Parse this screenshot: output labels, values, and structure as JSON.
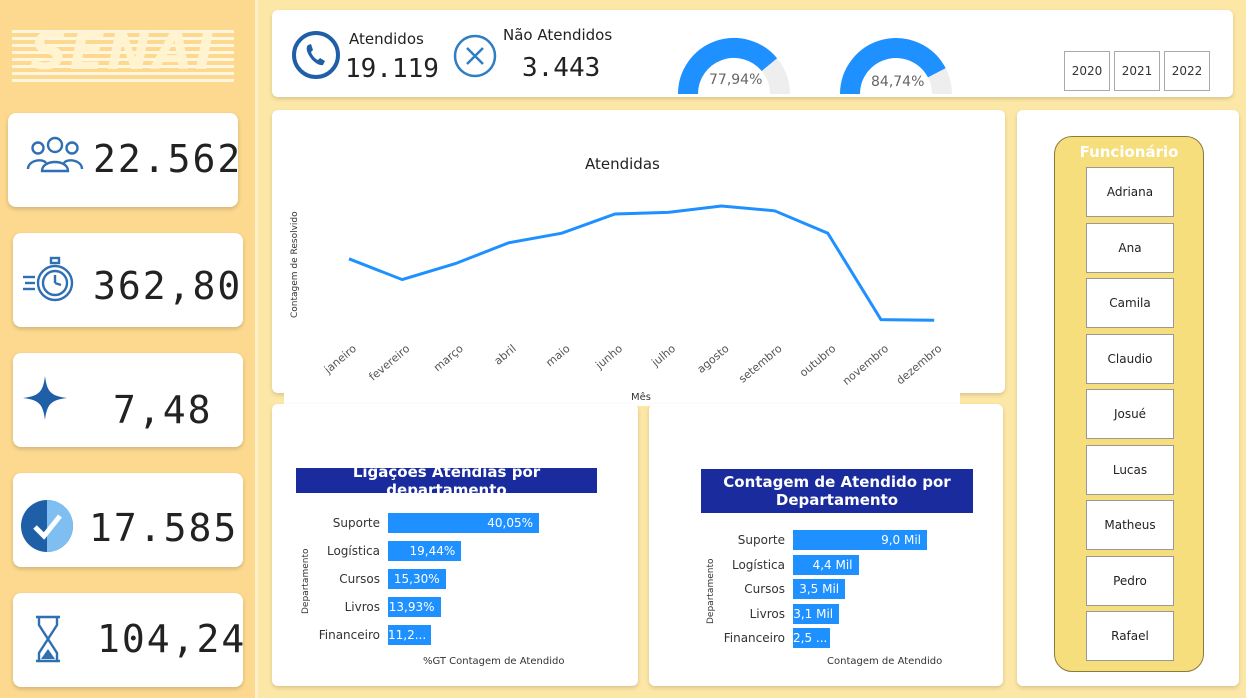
{
  "logo": {
    "text": "SENAI"
  },
  "kpis": [
    {
      "icon": "users-icon",
      "value": "22.562"
    },
    {
      "icon": "stopwatch-icon",
      "value": "362,80"
    },
    {
      "icon": "star-icon",
      "value": "7,48"
    },
    {
      "icon": "check-circle-icon",
      "value": "17.585"
    },
    {
      "icon": "hourglass-icon",
      "value": "104,24"
    }
  ],
  "header": {
    "attended": {
      "label": "Atendidos",
      "value": "19.119",
      "icon": "phone-icon"
    },
    "not_attended": {
      "label": "Não Atendidos",
      "value": "3.443",
      "icon": "close-circle-icon"
    },
    "gauges": [
      {
        "label": "77,94%",
        "value": 0.7794
      },
      {
        "label": "84,74%",
        "value": 0.8474
      }
    ],
    "years": [
      "2020",
      "2021",
      "2022"
    ]
  },
  "line_chart": {
    "title": "Atendidas",
    "ylabel": "Contagem de Resolvido",
    "xlabel": "Mês"
  },
  "dept_chart_1": {
    "title": "Ligações Atendias por departamento",
    "ylabel": "Departamento",
    "xlabel": "%GT Contagem de Atendido"
  },
  "dept_chart_2": {
    "title": "Contagem de Atendido por Departamento",
    "ylabel": "Departamento",
    "xlabel": "Contagem de Atendido"
  },
  "slicer": {
    "title": "Funcionário",
    "names": [
      "Adriana",
      "Ana",
      "Camila",
      "Claudio",
      "Josué",
      "Lucas",
      "Matheus",
      "Pedro",
      "Rafael"
    ]
  },
  "colors": {
    "accent": "#1e90ff",
    "navy": "#1a2b9e",
    "background": "#fde7a6",
    "sidebar": "#fcd98f"
  },
  "chart_data": [
    {
      "type": "line",
      "title": "Atendidas",
      "xlabel": "Mês",
      "ylabel": "Contagem de Resolvido",
      "categories": [
        "janeiro",
        "fevereiro",
        "março",
        "abril",
        "maio",
        "junho",
        "julho",
        "agosto",
        "setembro",
        "outubro",
        "novembro",
        "dezembro"
      ],
      "values": [
        1460,
        1395,
        1445,
        1510,
        1540,
        1600,
        1605,
        1625,
        1610,
        1540,
        1270,
        1268
      ],
      "ylim": [
        1200,
        1700
      ],
      "grid": false
    },
    {
      "type": "bar",
      "orientation": "horizontal",
      "title": "Ligações Atendias por departamento",
      "xlabel": "%GT Contagem de Atendido",
      "ylabel": "Departamento",
      "categories": [
        "Suporte",
        "Logística",
        "Cursos",
        "Livros",
        "Financeiro"
      ],
      "values": [
        40.05,
        19.44,
        15.3,
        13.93,
        11.28
      ],
      "labels": [
        "40,05%",
        "19,44%",
        "15,30%",
        "13,93%",
        "11,2..."
      ]
    },
    {
      "type": "bar",
      "orientation": "horizontal",
      "title": "Contagem de Atendido por Departamento",
      "xlabel": "Contagem de Atendido",
      "ylabel": "Departamento",
      "categories": [
        "Suporte",
        "Logística",
        "Cursos",
        "Livros",
        "Financeiro"
      ],
      "values": [
        9000,
        4400,
        3500,
        3100,
        2500
      ],
      "labels": [
        "9,0 Mil",
        "4,4 Mil",
        "3,5 Mil",
        "3,1 Mil",
        "2,5 ..."
      ]
    }
  ]
}
